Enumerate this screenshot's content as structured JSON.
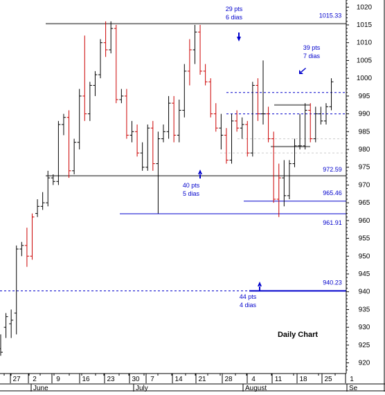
{
  "chart_data": {
    "type": "ohlc",
    "title": "Daily Chart",
    "y_axis": {
      "min": 917,
      "max": 1022,
      "ticks": [
        920,
        925,
        930,
        935,
        940,
        945,
        950,
        955,
        960,
        965,
        970,
        975,
        980,
        985,
        990,
        995,
        1000,
        1005,
        1010,
        1015,
        1020
      ],
      "position": "right"
    },
    "x_axis": {
      "day_ticks": [
        "27",
        "2",
        "9",
        "16",
        "23",
        "30",
        "7",
        "14",
        "21",
        "28",
        "4",
        "11",
        "18",
        "25",
        "1"
      ],
      "month_labels": [
        "June",
        "July",
        "August",
        "Se"
      ]
    },
    "bars": [
      {
        "o": 924,
        "h": 928,
        "l": 922,
        "c": 923,
        "color": "black"
      },
      {
        "o": 930,
        "h": 934,
        "l": 927,
        "c": 933,
        "color": "black"
      },
      {
        "o": 931,
        "h": 935,
        "l": 927,
        "c": 932,
        "color": "black"
      },
      {
        "o": 934,
        "h": 953,
        "l": 928,
        "c": 952,
        "color": "black"
      },
      {
        "o": 952,
        "h": 954,
        "l": 950,
        "c": 953,
        "color": "black"
      },
      {
        "o": 953,
        "h": 958,
        "l": 947,
        "c": 950,
        "color": "red"
      },
      {
        "o": 950,
        "h": 962,
        "l": 949,
        "c": 961,
        "color": "red"
      },
      {
        "o": 962,
        "h": 966,
        "l": 961,
        "c": 964,
        "color": "black"
      },
      {
        "o": 964,
        "h": 968,
        "l": 963,
        "c": 965,
        "color": "black"
      },
      {
        "o": 965,
        "h": 974,
        "l": 964,
        "c": 972,
        "color": "black"
      },
      {
        "o": 972,
        "h": 973,
        "l": 970,
        "c": 971,
        "color": "black"
      },
      {
        "o": 971,
        "h": 988,
        "l": 970,
        "c": 987,
        "color": "black"
      },
      {
        "o": 987,
        "h": 990,
        "l": 984,
        "c": 989,
        "color": "black"
      },
      {
        "o": 989,
        "h": 991,
        "l": 972,
        "c": 974,
        "color": "red"
      },
      {
        "o": 974,
        "h": 983,
        "l": 973,
        "c": 982,
        "color": "black"
      },
      {
        "o": 982,
        "h": 997,
        "l": 980,
        "c": 995,
        "color": "black"
      },
      {
        "o": 995,
        "h": 1012,
        "l": 988,
        "c": 990,
        "color": "red"
      },
      {
        "o": 990,
        "h": 999,
        "l": 988,
        "c": 998,
        "color": "black"
      },
      {
        "o": 998,
        "h": 1002,
        "l": 995,
        "c": 1001,
        "color": "black"
      },
      {
        "o": 1001,
        "h": 1011,
        "l": 1000,
        "c": 1010,
        "color": "black"
      },
      {
        "o": 1010,
        "h": 1016,
        "l": 1006,
        "c": 1008,
        "color": "red"
      },
      {
        "o": 1008,
        "h": 1016,
        "l": 1007,
        "c": 1014,
        "color": "black"
      },
      {
        "o": 1014,
        "h": 1015,
        "l": 993,
        "c": 994,
        "color": "red"
      },
      {
        "o": 994,
        "h": 997,
        "l": 993,
        "c": 995,
        "color": "black"
      },
      {
        "o": 995,
        "h": 997,
        "l": 983,
        "c": 984,
        "color": "red"
      },
      {
        "o": 984,
        "h": 988,
        "l": 982,
        "c": 985,
        "color": "black"
      },
      {
        "o": 985,
        "h": 987,
        "l": 978,
        "c": 979,
        "color": "red"
      },
      {
        "o": 979,
        "h": 982,
        "l": 974,
        "c": 975,
        "color": "black"
      },
      {
        "o": 975,
        "h": 987,
        "l": 974,
        "c": 986,
        "color": "black"
      },
      {
        "o": 986,
        "h": 988,
        "l": 974,
        "c": 976,
        "color": "red"
      },
      {
        "o": 976,
        "h": 985,
        "l": 962,
        "c": 983,
        "color": "black"
      },
      {
        "o": 983,
        "h": 987,
        "l": 982,
        "c": 985,
        "color": "black"
      },
      {
        "o": 985,
        "h": 995,
        "l": 983,
        "c": 993,
        "color": "black"
      },
      {
        "o": 993,
        "h": 995,
        "l": 982,
        "c": 984,
        "color": "red"
      },
      {
        "o": 984,
        "h": 994,
        "l": 982,
        "c": 991,
        "color": "black"
      },
      {
        "o": 991,
        "h": 1004,
        "l": 989,
        "c": 1002,
        "color": "black"
      },
      {
        "o": 1002,
        "h": 1011,
        "l": 998,
        "c": 1008,
        "color": "red"
      },
      {
        "o": 1008,
        "h": 1015,
        "l": 1004,
        "c": 1013,
        "color": "black"
      },
      {
        "o": 1013,
        "h": 1015,
        "l": 1001,
        "c": 1002,
        "color": "red"
      },
      {
        "o": 1002,
        "h": 1004,
        "l": 998,
        "c": 999,
        "color": "red"
      },
      {
        "o": 999,
        "h": 1000,
        "l": 989,
        "c": 990,
        "color": "red"
      },
      {
        "o": 990,
        "h": 993,
        "l": 985,
        "c": 986,
        "color": "red"
      },
      {
        "o": 986,
        "h": 990,
        "l": 980,
        "c": 984,
        "color": "black"
      },
      {
        "o": 984,
        "h": 986,
        "l": 976,
        "c": 977,
        "color": "red"
      },
      {
        "o": 977,
        "h": 990,
        "l": 976,
        "c": 988,
        "color": "black"
      },
      {
        "o": 988,
        "h": 991,
        "l": 985,
        "c": 986,
        "color": "red"
      },
      {
        "o": 986,
        "h": 989,
        "l": 983,
        "c": 987,
        "color": "black"
      },
      {
        "o": 987,
        "h": 988,
        "l": 978,
        "c": 979,
        "color": "red"
      },
      {
        "o": 979,
        "h": 999,
        "l": 978,
        "c": 998,
        "color": "black"
      },
      {
        "o": 998,
        "h": 1000,
        "l": 988,
        "c": 990,
        "color": "red"
      },
      {
        "o": 990,
        "h": 1005,
        "l": 987,
        "c": 990,
        "color": "black"
      },
      {
        "o": 990,
        "h": 992,
        "l": 982,
        "c": 983,
        "color": "red"
      },
      {
        "o": 983,
        "h": 985,
        "l": 965,
        "c": 966,
        "color": "red"
      },
      {
        "o": 966,
        "h": 976,
        "l": 961,
        "c": 972,
        "color": "red"
      },
      {
        "o": 972,
        "h": 977,
        "l": 964,
        "c": 967,
        "color": "black"
      },
      {
        "o": 967,
        "h": 977,
        "l": 966,
        "c": 976,
        "color": "black"
      },
      {
        "o": 976,
        "h": 983,
        "l": 975,
        "c": 981,
        "color": "black"
      },
      {
        "o": 981,
        "h": 990,
        "l": 980,
        "c": 981,
        "color": "black"
      },
      {
        "o": 981,
        "h": 993,
        "l": 980,
        "c": 991,
        "color": "black"
      },
      {
        "o": 991,
        "h": 993,
        "l": 982,
        "c": 983,
        "color": "red"
      },
      {
        "o": 983,
        "h": 992,
        "l": 982,
        "c": 990,
        "color": "black"
      },
      {
        "o": 990,
        "h": 992,
        "l": 987,
        "c": 988,
        "color": "black"
      },
      {
        "o": 988,
        "h": 993,
        "l": 987,
        "c": 992,
        "color": "black"
      },
      {
        "o": 992,
        "h": 1000,
        "l": 991,
        "c": 999,
        "color": "black"
      }
    ],
    "levels": [
      {
        "value": 1015.33,
        "label": "1015.33",
        "style": "gray-thick"
      },
      {
        "value": 972.59,
        "label": "972.59",
        "style": "gray-thick"
      },
      {
        "value": 965.46,
        "label": "965.46",
        "style": "blue"
      },
      {
        "value": 961.91,
        "label": "961.91",
        "style": "blue"
      },
      {
        "value": 940.23,
        "label": "940.23",
        "style": "blue-dashed"
      }
    ],
    "annotations": [
      {
        "text": "29 pts",
        "text2": "6 dias"
      },
      {
        "text": "40 pts",
        "text2": "5 dias"
      },
      {
        "text": "44 pts",
        "text2": "4 dias"
      },
      {
        "text": "39 pts",
        "text2": "7 dias"
      }
    ],
    "colors": {
      "up": "#000000",
      "down": "#cc0000",
      "annotation": "#0000cc",
      "level_gray": "#808080",
      "grid": "#cccccc"
    }
  }
}
